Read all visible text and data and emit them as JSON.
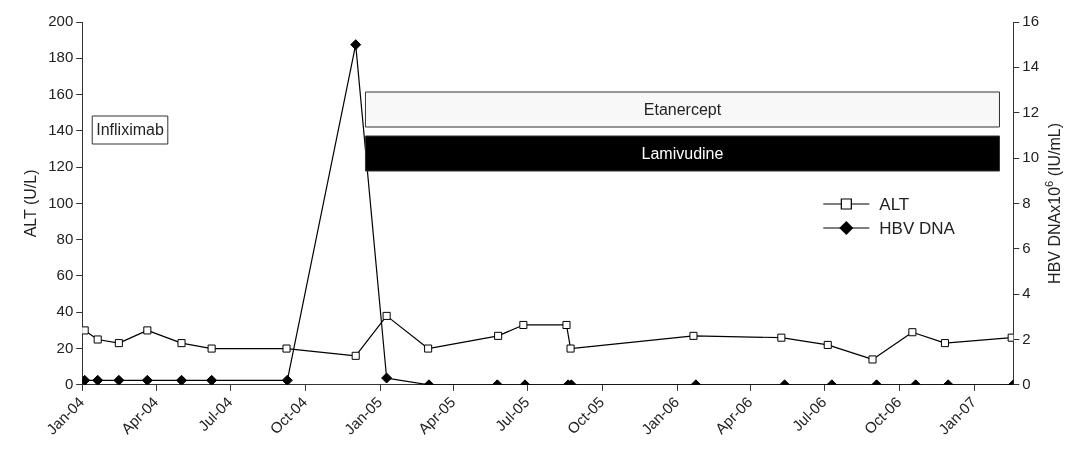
{
  "chart_data": {
    "type": "line",
    "xlabel": null,
    "ylabel": "ALT (U/L)",
    "y2label": "HBV DNAx10$^{6}$ (IU/mL)",
    "xlim": [
      "2004-01-01",
      "2007-02-18"
    ],
    "xticks": [
      {
        "value": "2004-01",
        "label": "Jan-04"
      },
      {
        "value": "2004-04",
        "label": "Apr-04"
      },
      {
        "value": "2004-07",
        "label": "Jul-04"
      },
      {
        "value": "2004-10",
        "label": "Oct-04"
      },
      {
        "value": "2005-01",
        "label": "Jan-05"
      },
      {
        "value": "2005-04",
        "label": "Apr-05"
      },
      {
        "value": "2005-07",
        "label": "Jul-05"
      },
      {
        "value": "2005-10",
        "label": "Oct-05"
      },
      {
        "value": "2006-01",
        "label": "Jan-06"
      },
      {
        "value": "2006-04",
        "label": "Apr-06"
      },
      {
        "value": "2006-07",
        "label": "Jul-06"
      },
      {
        "value": "2006-10",
        "label": "Oct-06"
      },
      {
        "value": "2007-01",
        "label": "Jan-07"
      }
    ],
    "ylim": [
      0,
      200
    ],
    "yticks": [
      0,
      20,
      40,
      60,
      80,
      100,
      120,
      140,
      160,
      180,
      200
    ],
    "y2lim": [
      0,
      16
    ],
    "y2ticks": [
      0,
      2,
      4,
      6,
      8,
      10,
      12,
      14,
      16
    ],
    "legend": "right",
    "series": [
      {
        "name": "ALT",
        "color": "#000000",
        "marker": "square",
        "x": [
          "2004-01-04",
          "2004-01-20",
          "2004-02-15",
          "2004-03-21",
          "2004-05-02",
          "2004-06-08",
          "2004-09-08",
          "2004-12-02",
          "2005-01-09",
          "2005-03-01",
          "2005-05-26",
          "2005-06-26",
          "2005-08-18",
          "2005-08-23",
          "2006-01-21",
          "2006-05-09",
          "2006-07-05",
          "2006-08-29",
          "2006-10-17",
          "2006-11-26",
          "2007-02-16"
        ],
        "values": [
          30,
          25,
          23,
          30,
          23,
          20,
          20,
          16,
          38,
          20,
          27,
          33,
          33,
          20,
          27,
          26,
          22,
          14,
          29,
          23,
          26
        ]
      },
      {
        "name": "HBV DNA",
        "color": "#000000",
        "marker": "diamond",
        "axis": "y2",
        "x": [
          "2004-01-04",
          "2004-01-20",
          "2004-02-15",
          "2004-03-21",
          "2004-05-02",
          "2004-06-08",
          "2004-09-09",
          "2004-12-02",
          "2005-01-09",
          "2005-03-02",
          "2005-05-25",
          "2005-06-28",
          "2005-08-20",
          "2005-08-24",
          "2006-01-24",
          "2006-05-13",
          "2006-07-10",
          "2006-09-03",
          "2006-10-21",
          "2006-11-30",
          "2007-02-18"
        ],
        "values": [
          0.2,
          0.2,
          0.2,
          0.2,
          0.2,
          0.2,
          0.2,
          15,
          0.3,
          0,
          0,
          0,
          0,
          0,
          0,
          0,
          0,
          0,
          0,
          0,
          0
        ]
      }
    ],
    "bands": [
      {
        "axis": "x",
        "from": "2004-12-14",
        "to": "2007-02-01",
        "label": "Etanercept",
        "color": "#f8f8f8"
      },
      {
        "axis": "x",
        "from": "2004-12-14",
        "to": "2007-02-01",
        "label": "Lamivudine",
        "color": "#000000"
      }
    ],
    "annotations": [
      "Infliximab"
    ]
  }
}
